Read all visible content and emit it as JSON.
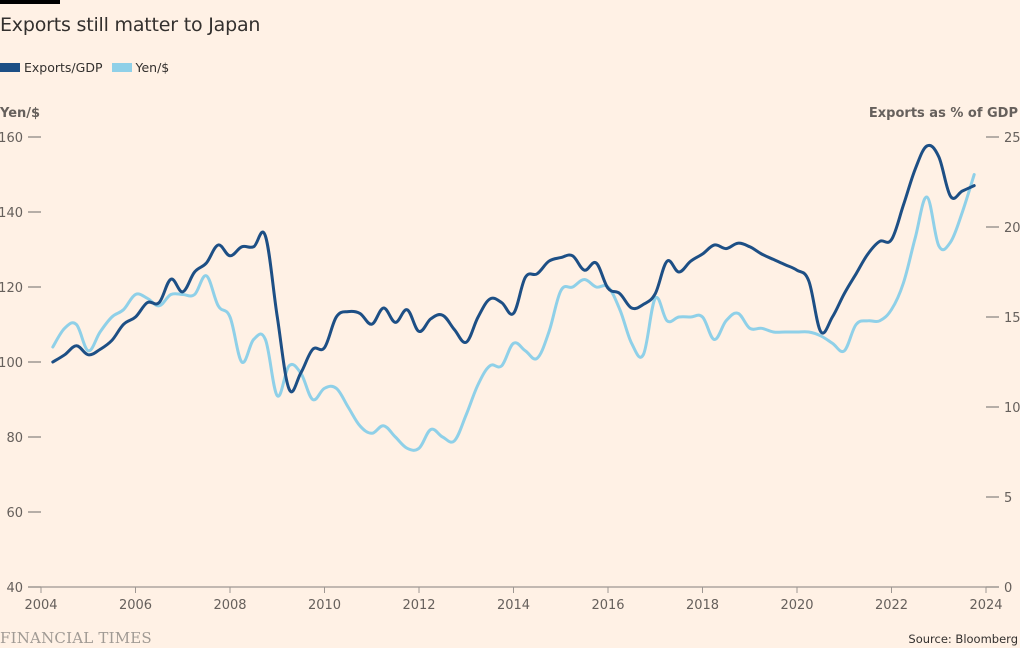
{
  "header": {
    "title": "Exports still matter to Japan",
    "legend": [
      {
        "label": "Exports/GDP",
        "color": "#1d4f85"
      },
      {
        "label": "Yen/$",
        "color": "#8fd0e8"
      }
    ]
  },
  "footer": {
    "logo": "FINANCIAL TIMES",
    "source": "Source: Bloomberg"
  },
  "chart_data": {
    "type": "line",
    "title": "Exports still matter to Japan",
    "xlabel": "",
    "ylabel_left": "Yen/$",
    "ylabel_right": "Exports as % of GDP",
    "xlim": [
      2004,
      2024
    ],
    "ylim_left": [
      40,
      160
    ],
    "ylim_right": [
      0,
      25
    ],
    "x_ticks": [
      "2004",
      "2006",
      "2008",
      "2010",
      "2012",
      "2014",
      "2016",
      "2018",
      "2020",
      "2022",
      "2024"
    ],
    "y_ticks_left": [
      "160",
      "140",
      "120",
      "100",
      "80",
      "60",
      "40"
    ],
    "y_ticks_right": [
      "25",
      "20",
      "15",
      "10",
      "5",
      "0"
    ],
    "grid": false,
    "legend_position": "top-left",
    "series": [
      {
        "name": "Exports/GDP",
        "axis": "right",
        "color": "#1d4f85",
        "x": [
          2004.25,
          2004.5,
          2004.75,
          2005.0,
          2005.25,
          2005.5,
          2005.75,
          2006.0,
          2006.25,
          2006.5,
          2006.75,
          2007.0,
          2007.25,
          2007.5,
          2007.75,
          2008.0,
          2008.25,
          2008.5,
          2008.75,
          2009.0,
          2009.25,
          2009.5,
          2009.75,
          2010.0,
          2010.25,
          2010.5,
          2010.75,
          2011.0,
          2011.25,
          2011.5,
          2011.75,
          2012.0,
          2012.25,
          2012.5,
          2012.75,
          2013.0,
          2013.25,
          2013.5,
          2013.75,
          2014.0,
          2014.25,
          2014.5,
          2014.75,
          2015.0,
          2015.25,
          2015.5,
          2015.75,
          2016.0,
          2016.25,
          2016.5,
          2016.75,
          2017.0,
          2017.25,
          2017.5,
          2017.75,
          2018.0,
          2018.25,
          2018.5,
          2018.75,
          2019.0,
          2019.25,
          2019.5,
          2019.75,
          2020.0,
          2020.25,
          2020.5,
          2020.75,
          2021.0,
          2021.25,
          2021.5,
          2021.75,
          2022.0,
          2022.25,
          2022.5,
          2022.75,
          2023.0,
          2023.25,
          2023.5,
          2023.75
        ],
        "values": [
          12.5,
          12.9,
          13.4,
          12.9,
          13.2,
          13.7,
          14.6,
          15.0,
          15.8,
          15.8,
          17.1,
          16.4,
          17.5,
          18.0,
          19.0,
          18.4,
          18.9,
          18.9,
          19.5,
          15.0,
          11.0,
          11.9,
          13.2,
          13.3,
          15.0,
          15.3,
          15.2,
          14.6,
          15.5,
          14.7,
          15.4,
          14.2,
          14.9,
          15.1,
          14.3,
          13.6,
          15.0,
          16.0,
          15.8,
          15.2,
          17.2,
          17.4,
          18.1,
          18.3,
          18.4,
          17.6,
          18.0,
          16.6,
          16.3,
          15.5,
          15.7,
          16.3,
          18.1,
          17.5,
          18.1,
          18.5,
          19.0,
          18.8,
          19.1,
          18.9,
          18.5,
          18.2,
          17.9,
          17.6,
          17.0,
          14.2,
          15.0,
          16.3,
          17.4,
          18.5,
          19.2,
          19.3,
          21.2,
          23.2,
          24.5,
          23.9,
          21.7,
          22.0,
          22.3
        ]
      },
      {
        "name": "Yen/$",
        "axis": "left",
        "color": "#8fd0e8",
        "x": [
          2004.25,
          2004.5,
          2004.75,
          2005.0,
          2005.25,
          2005.5,
          2005.75,
          2006.0,
          2006.25,
          2006.5,
          2006.75,
          2007.0,
          2007.25,
          2007.5,
          2007.75,
          2008.0,
          2008.25,
          2008.5,
          2008.75,
          2009.0,
          2009.25,
          2009.5,
          2009.75,
          2010.0,
          2010.25,
          2010.5,
          2010.75,
          2011.0,
          2011.25,
          2011.5,
          2011.75,
          2012.0,
          2012.25,
          2012.5,
          2012.75,
          2013.0,
          2013.25,
          2013.5,
          2013.75,
          2014.0,
          2014.25,
          2014.5,
          2014.75,
          2015.0,
          2015.25,
          2015.5,
          2015.75,
          2016.0,
          2016.25,
          2016.5,
          2016.75,
          2017.0,
          2017.25,
          2017.5,
          2017.75,
          2018.0,
          2018.25,
          2018.5,
          2018.75,
          2019.0,
          2019.25,
          2019.5,
          2019.75,
          2020.0,
          2020.25,
          2020.5,
          2020.75,
          2021.0,
          2021.25,
          2021.5,
          2021.75,
          2022.0,
          2022.25,
          2022.5,
          2022.75,
          2023.0,
          2023.25,
          2023.5,
          2023.75
        ],
        "values": [
          104,
          109,
          110,
          103,
          108,
          112,
          114,
          118,
          117,
          115,
          118,
          118,
          118,
          123,
          115,
          112,
          100,
          106,
          106,
          91,
          99,
          97,
          90,
          93,
          93,
          88,
          83,
          81,
          83,
          80,
          77,
          77,
          82,
          80,
          79,
          86,
          94,
          99,
          99,
          105,
          103,
          101,
          108,
          119,
          120,
          122,
          120,
          120,
          114,
          105,
          102,
          117,
          111,
          112,
          112,
          112,
          106,
          111,
          113,
          109,
          109,
          108,
          108,
          108,
          108,
          107,
          105,
          103,
          110,
          111,
          111,
          114,
          121,
          133,
          144,
          131,
          132,
          140,
          150
        ]
      }
    ]
  }
}
